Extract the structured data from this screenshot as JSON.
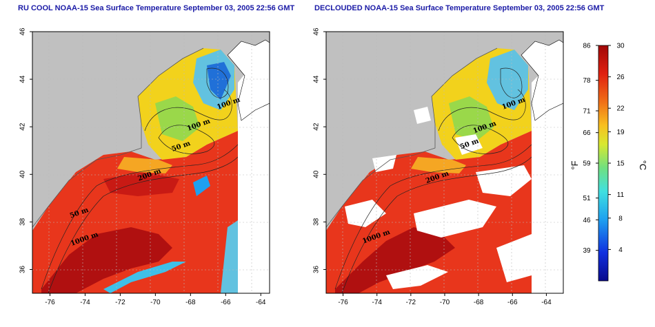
{
  "titles": {
    "left": "RU COOL NOAA-15 Sea Surface Temperature September 03, 2005 22:56 GMT",
    "right": "DECLOUDED NOAA-15 Sea Surface Temperature September 03, 2005 22:56 GMT"
  },
  "colors": {
    "land": "#c0c0c0",
    "warm_water": "#e8361c",
    "deep_warm": "#b01010",
    "cool_water": "#f2d21c",
    "cold_water": "#62c2e0",
    "cloud_gap": "#ffffff",
    "outside_coverage": "#ffffff"
  },
  "chart_data": [
    {
      "type": "heatmap",
      "name": "left-map",
      "xticks": [
        "-76",
        "-74",
        "-72",
        "-70",
        "-68",
        "-66",
        "-64"
      ],
      "yticks": [
        "36",
        "38",
        "40",
        "42",
        "44",
        "46"
      ],
      "xlim": [
        -77,
        -63.5
      ],
      "ylim": [
        35,
        46
      ],
      "x_unit": "longitude (deg)",
      "y_unit": "latitude (deg)",
      "grid": true,
      "contour_labels": [
        {
          "text": "100 m",
          "lon": -65.8,
          "lat": 42.9
        },
        {
          "text": "100 m",
          "lon": -67.5,
          "lat": 42.0
        },
        {
          "text": "50 m",
          "lon": -68.5,
          "lat": 41.1
        },
        {
          "text": "200 m",
          "lon": -70.3,
          "lat": 39.9
        },
        {
          "text": "50 m",
          "lon": -74.3,
          "lat": 38.3
        },
        {
          "text": "1000 m",
          "lon": -74.0,
          "lat": 37.2
        }
      ]
    },
    {
      "type": "heatmap",
      "name": "right-map",
      "xticks": [
        "-76",
        "-74",
        "-72",
        "-70",
        "-68",
        "-66",
        "-64"
      ],
      "yticks": [
        "36",
        "38",
        "40",
        "42",
        "44",
        "46"
      ],
      "xlim": [
        -77,
        -63
      ],
      "ylim": [
        35,
        46
      ],
      "x_unit": "longitude (deg)",
      "y_unit": "latitude (deg)",
      "grid": true,
      "contour_labels": [
        {
          "text": "100 m",
          "lon": -65.9,
          "lat": 42.9
        },
        {
          "text": "100 m",
          "lon": -67.6,
          "lat": 41.9
        },
        {
          "text": "50 m",
          "lon": -68.5,
          "lat": 41.2
        },
        {
          "text": "200 m",
          "lon": -70.4,
          "lat": 39.8
        },
        {
          "text": "1000 m",
          "lon": -74.0,
          "lat": 37.3
        }
      ]
    }
  ],
  "colorbar": {
    "fahrenheit_ticks": [
      "86",
      "78",
      "71",
      "66",
      "59",
      "51",
      "46",
      "39"
    ],
    "celsius_ticks": [
      "30",
      "26",
      "22",
      "19",
      "15",
      "11",
      "8",
      "4"
    ],
    "celsius_values": [
      30,
      26,
      22,
      19,
      15,
      11,
      8,
      4
    ],
    "fahrenheit_values": [
      86,
      78,
      71,
      66,
      59,
      51,
      46,
      39
    ],
    "range_celsius": [
      0,
      30
    ],
    "fahrenheit_unit": "°F",
    "celsius_unit": "°C"
  }
}
